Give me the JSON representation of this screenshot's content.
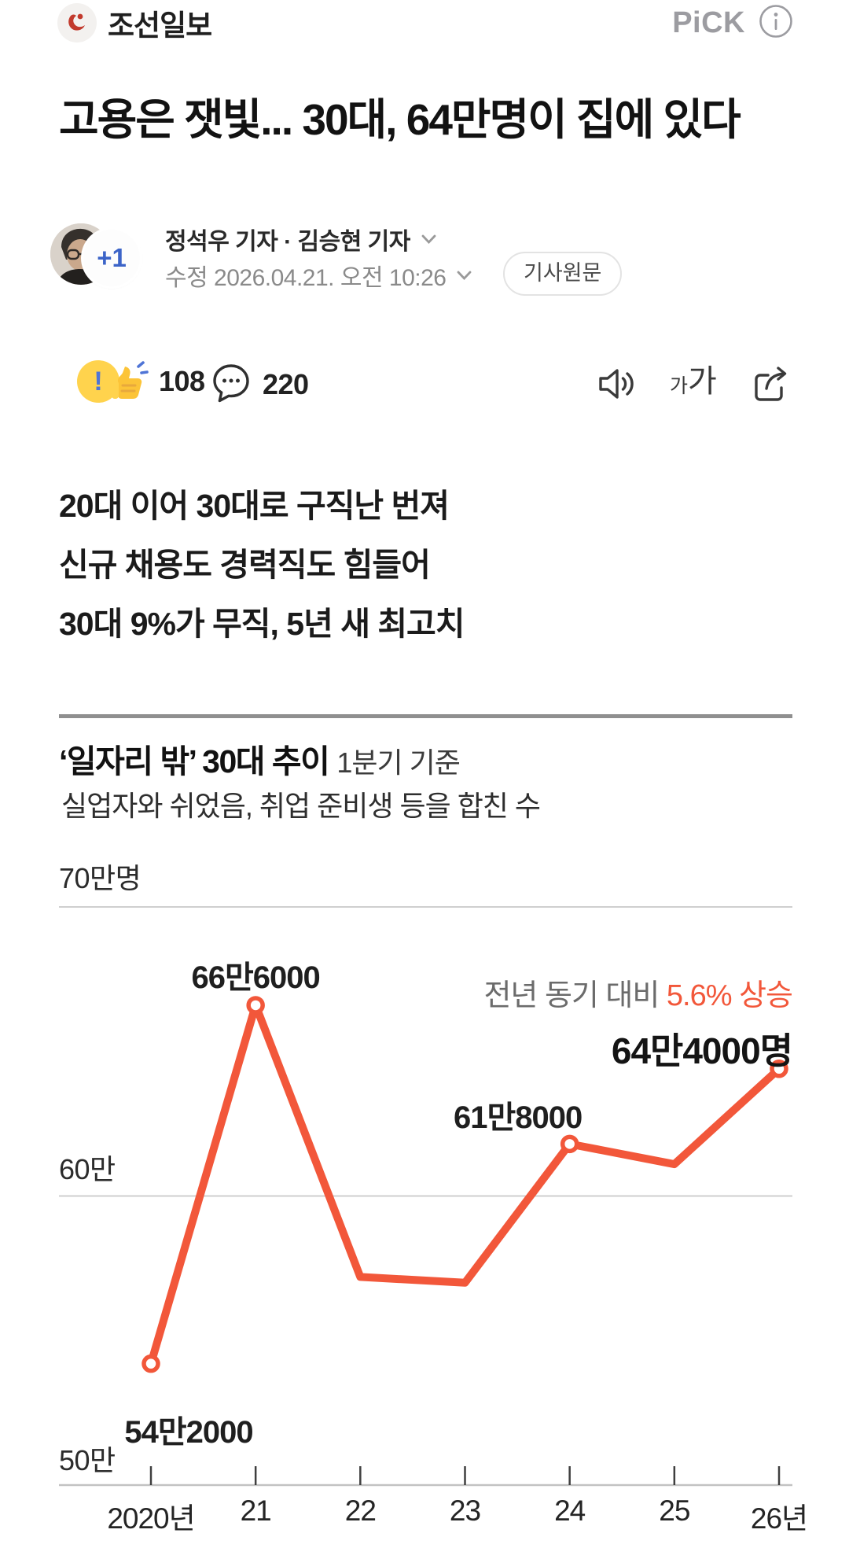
{
  "header": {
    "publisher": "조선일보",
    "pick_label": "PiCK",
    "icons": {
      "publisher_logo": "chosun-ilbo-logo",
      "pick_info": "info-circle-icon"
    }
  },
  "article": {
    "title": "고용은 잿빛... 30대, 64만명이 집에 있다",
    "authors": "정석우 기자 · 김승현 기자",
    "more_authors_badge": "+1",
    "modified_date": "수정 2026.04.21. 오전 10:26",
    "original_article_label": "기사원문"
  },
  "engagement": {
    "reaction_count": "108",
    "comment_count": "220",
    "text_size_small": "가",
    "text_size_big": "가",
    "icons": {
      "reactions": "surprise-emoji, thumbs-up-emoji",
      "comments": "speech-bubble-icon",
      "tts": "speaker-icon",
      "share": "share-icon"
    }
  },
  "subheads": [
    "20대 이어 30대로 구직난 번져",
    "신규 채용도 경력직도 힘들어",
    "30대 9%가 무직, 5년 새 최고치"
  ],
  "chart_data": {
    "type": "line",
    "title": "‘일자리 밖’ 30대 추이",
    "title_suffix": "1분기 기준",
    "subtitle": "실업자와 쉬었음, 취업 준비생 등을 합친 수",
    "unit": "만명",
    "categories": [
      "2020년",
      "21",
      "22",
      "23",
      "24",
      "25",
      "26년"
    ],
    "values_10k": [
      54.2,
      66.6,
      57.2,
      57.0,
      61.8,
      61.1,
      64.4
    ],
    "point_labels": [
      "54만2000",
      "66만6000",
      null,
      null,
      "61만8000",
      null,
      null
    ],
    "marker_indices": [
      0,
      1,
      4,
      6
    ],
    "annotation": {
      "prefix": "전년 동기 대비 ",
      "highlight": "5.6% 상승",
      "value_label": "64만4000명"
    },
    "y_ticks": [
      "70만명",
      "60만",
      "50만"
    ],
    "ylim_10k": [
      50,
      70
    ],
    "grid": "horizontal-only",
    "legend": "none",
    "line_color": "#f2573a"
  }
}
